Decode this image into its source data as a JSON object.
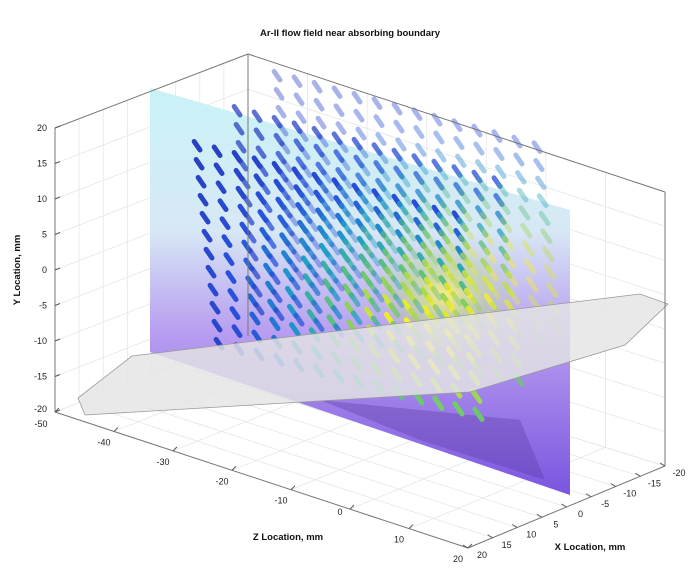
{
  "chart_data": {
    "type": "quiver3d",
    "title": "Ar-II flow field near absorbing boundary",
    "xlabel": "X Location, mm",
    "ylabel": "Y Location, mm",
    "zlabel": "Z Location, mm",
    "x_ticks": [
      "20",
      "15",
      "10",
      "5",
      "0",
      "-5",
      "-10",
      "-15",
      "-20"
    ],
    "y_ticks": [
      "20",
      "15",
      "10",
      "5",
      "0",
      "-5",
      "-10",
      "-15",
      "-20"
    ],
    "z_ticks": [
      "-50",
      "-40",
      "-30",
      "-20",
      "-10",
      "0",
      "10",
      "20"
    ],
    "xlim": [
      -20,
      20
    ],
    "ylim": [
      -20,
      20
    ],
    "zlim": [
      -50,
      20
    ],
    "grid": true,
    "colormap": "parula",
    "background_plane": "photograph of experiment, cyan-to-purple tint",
    "colors": {
      "low": "#2a2ab0",
      "mid": "#1fb0b0",
      "high": "#f5f020"
    }
  }
}
